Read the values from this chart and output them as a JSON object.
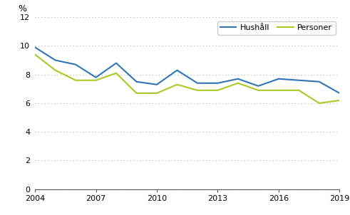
{
  "years": [
    2004,
    2005,
    2006,
    2007,
    2008,
    2009,
    2010,
    2011,
    2012,
    2013,
    2014,
    2015,
    2016,
    2017,
    2018,
    2019
  ],
  "hushalll": [
    9.9,
    9.0,
    8.7,
    7.8,
    8.8,
    7.5,
    7.3,
    8.3,
    7.4,
    7.4,
    7.7,
    7.2,
    7.7,
    7.6,
    7.5,
    6.7
  ],
  "personer": [
    9.4,
    8.3,
    7.6,
    7.6,
    8.1,
    6.7,
    6.7,
    7.3,
    6.9,
    6.9,
    7.4,
    6.9,
    6.9,
    6.9,
    6.0,
    6.2
  ],
  "hushalll_color": "#2E75B6",
  "personer_color": "#A9C924",
  "hushalll_label": "Hushåll",
  "personer_label": "Personer",
  "ylabel": "%",
  "ylim": [
    0,
    12
  ],
  "yticks": [
    0,
    2,
    4,
    6,
    8,
    10,
    12
  ],
  "xticks": [
    2004,
    2007,
    2010,
    2013,
    2016,
    2019
  ],
  "background_color": "#ffffff",
  "grid_color": "#b0b0b0"
}
